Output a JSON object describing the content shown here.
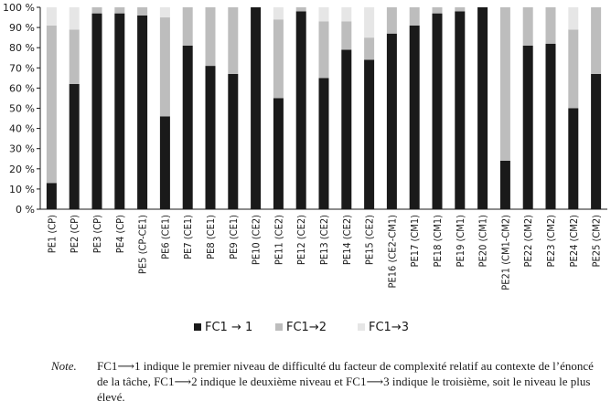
{
  "chart_data": {
    "type": "bar",
    "stacked": true,
    "categories": [
      "PE1 (CP)",
      "PE2 (CP)",
      "PE3 (CP)",
      "PE4 (CP)",
      "PE5 (CP-CE1)",
      "PE6 (CE1)",
      "PE7 (CE1)",
      "PE8 (CE1)",
      "PE9 (CE1)",
      "PE10 (CE2)",
      "PE11 (CE2)",
      "PE12 (CE2)",
      "PE13 (CE2)",
      "PE14 (CE2)",
      "PE15 (CE2)",
      "PE16 (CE2-CM1)",
      "PE17 (CM1)",
      "PE18 (CM1)",
      "PE19 (CM1)",
      "PE20 (CM1)",
      "PE21 (CM1-CM2)",
      "PE22 (CM2)",
      "PE23 (CM2)",
      "PE24 (CM2)",
      "PE25 (CM2)"
    ],
    "series": [
      {
        "name": "FC1 → 1",
        "color": "#1a1a1a",
        "values": [
          13,
          62,
          97,
          97,
          96,
          46,
          81,
          71,
          67,
          100,
          55,
          98,
          65,
          79,
          74,
          87,
          91,
          97,
          98,
          100,
          24,
          81,
          82,
          50,
          67
        ]
      },
      {
        "name": "FC1→2",
        "color": "#bdbdbd",
        "values": [
          78,
          27,
          3,
          3,
          4,
          49,
          19,
          29,
          33,
          0,
          39,
          2,
          28,
          14,
          11,
          13,
          9,
          3,
          2,
          0,
          76,
          19,
          18,
          39,
          33
        ]
      },
      {
        "name": "FC1→3",
        "color": "#e6e6e6",
        "values": [
          9,
          11,
          0,
          0,
          0,
          5,
          0,
          0,
          0,
          0,
          6,
          0,
          7,
          7,
          15,
          0,
          0,
          0,
          0,
          0,
          0,
          0,
          0,
          11,
          0
        ]
      }
    ],
    "yticks": [
      "0 %",
      "10 %",
      "20 %",
      "30 %",
      "40 %",
      "50 %",
      "60 %",
      "70 %",
      "80 %",
      "90 %",
      "100 %"
    ],
    "ylim": [
      0,
      100
    ],
    "grid": false,
    "legend_position": "bottom"
  },
  "note": {
    "label": "Note.",
    "text": "FC1⟶1 indique le premier niveau de difficulté du facteur de complexité relatif au contexte de l’énoncé de la tâche, FC1⟶2 indique le deuxième niveau et FC1⟶3 indique le troisième, soit le niveau le plus élevé."
  }
}
